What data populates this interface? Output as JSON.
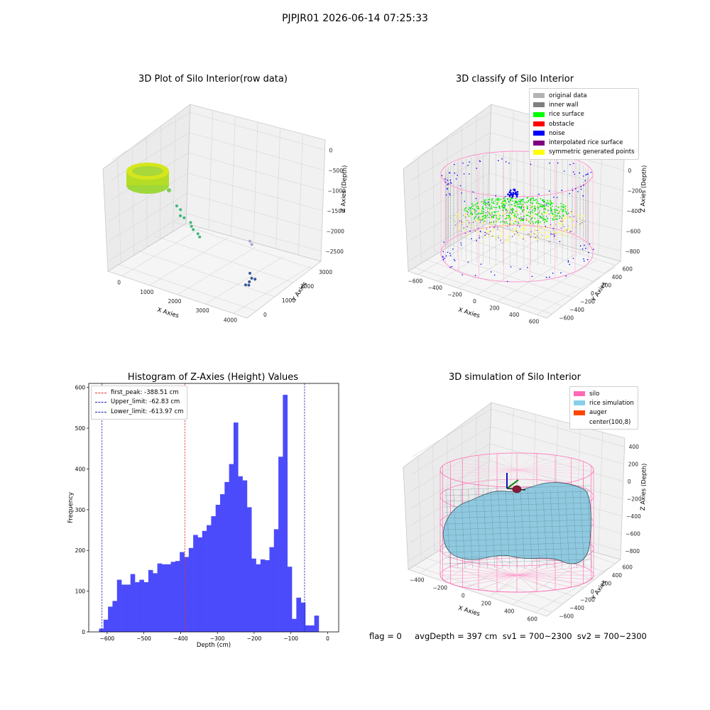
{
  "figure": {
    "suptitle": "PJPJR01 2026-06-14 07:25:33",
    "status_text": "flag = 0     avgDepth = 397 cm  sv1 = 700~2300  sv2 = 700~2300"
  },
  "chart_data": [
    {
      "type": "scatter",
      "projection": "3d",
      "title": "3D Plot of Silo Interior(row data)",
      "xlabel": "X Axies",
      "ylabel": "Y Axies",
      "zlabel": "Z Axies (Depth)",
      "x_ticks": [
        "0",
        "1000",
        "2000",
        "3000",
        "4000"
      ],
      "y_ticks": [
        "0",
        "1000",
        "2000",
        "3000"
      ],
      "z_ticks": [
        "0",
        "−500",
        "−1000",
        "−1500",
        "−2000",
        "−2500"
      ],
      "xlim": [
        -500,
        4500
      ],
      "ylim": [
        -500,
        3500
      ],
      "zlim": [
        -2900,
        100
      ],
      "colormap": "viridis",
      "grid": true,
      "clusters": [
        {
          "shape": "ring",
          "x": 0,
          "y": 0,
          "z": -500,
          "color": "#c8e020"
        },
        {
          "shape": "points",
          "x": [
            1200,
            1300,
            1400,
            1500,
            1700,
            1800,
            1900,
            2100,
            2200
          ],
          "y": [
            600,
            650,
            500,
            550,
            600,
            500,
            450,
            400,
            350
          ],
          "z": [
            -900,
            -1000,
            -1100,
            -1150,
            -1250,
            -1300,
            -1350,
            -1400,
            -1450
          ],
          "color": "#3fb87a"
        },
        {
          "shape": "points",
          "x": [
            3200,
            3300
          ],
          "y": [
            1500,
            1450
          ],
          "z": [
            -1700,
            -1750
          ],
          "color": "#b0a0d0"
        },
        {
          "shape": "points",
          "x": [
            3900,
            4000,
            4050,
            3950,
            3850,
            4000
          ],
          "y": [
            500,
            450,
            550,
            400,
            350,
            300
          ],
          "z": [
            -2100,
            -2200,
            -2250,
            -2300,
            -2400,
            -2350
          ],
          "color": "#3a5a9a"
        }
      ]
    },
    {
      "type": "scatter",
      "projection": "3d",
      "title": "3D classify of Silo Interior",
      "xlabel": "X Axies",
      "ylabel": "Y Axies",
      "zlabel": "Z Axies (Depth)",
      "x_ticks": [
        "−600",
        "−400",
        "−200",
        "0",
        "200",
        "400",
        "600"
      ],
      "y_ticks": [
        "−600",
        "−400",
        "−200",
        "0",
        "200",
        "400",
        "600"
      ],
      "z_ticks": [
        "200",
        "0",
        "−200",
        "−400",
        "−600",
        "−800"
      ],
      "xlim": [
        -700,
        700
      ],
      "ylim": [
        -700,
        700
      ],
      "zlim": [
        -900,
        300
      ],
      "grid": true,
      "legend": {
        "placement": "upper-right",
        "entries": [
          {
            "label": "original data",
            "color": "#b3b3b3"
          },
          {
            "label": "inner wall",
            "color": "#808080"
          },
          {
            "label": "rice surface",
            "color": "#00ff00"
          },
          {
            "label": "obstacle",
            "color": "#ff0000"
          },
          {
            "label": "noise",
            "color": "#0000ff"
          },
          {
            "label": "interpolated rice surface",
            "color": "#800080"
          },
          {
            "label": "symmetric generated points",
            "color": "#ffff00"
          }
        ]
      }
    },
    {
      "type": "bar",
      "title": "Histogram of Z-Axies (Height) Values",
      "xlabel": "Depth (cm)",
      "ylabel": "Frequency",
      "xlim": [
        -650,
        30
      ],
      "ylim": [
        0,
        610
      ],
      "x_ticks": [
        "−600",
        "−500",
        "−400",
        "−300",
        "−200",
        "−100",
        "0"
      ],
      "y_ticks": [
        "0",
        "100",
        "200",
        "300",
        "400",
        "500",
        "600"
      ],
      "bin_start": -622,
      "bin_width": 12.2,
      "bar_color": "#4b4bfc",
      "values": [
        8,
        30,
        62,
        76,
        128,
        116,
        116,
        142,
        122,
        128,
        122,
        152,
        144,
        168,
        166,
        166,
        172,
        174,
        196,
        184,
        206,
        238,
        232,
        248,
        262,
        284,
        312,
        338,
        368,
        412,
        514,
        382,
        372,
        306,
        180,
        166,
        178,
        176,
        208,
        252,
        430,
        582,
        160,
        32,
        84,
        72,
        16,
        16,
        40
      ],
      "reference_lines": [
        {
          "label": "first_peak: -388.51 cm",
          "x": -388.51,
          "color": "#e03030"
        },
        {
          "label": "Upper_limit: -62.83 cm",
          "x": -62.83,
          "color": "#2020b0"
        },
        {
          "label": "Lower_limit: -613.97 cm",
          "x": -613.97,
          "color": "#2020b0"
        }
      ],
      "legend": {
        "placement": "upper-left"
      }
    },
    {
      "type": "area",
      "projection": "3d",
      "title": "3D simulation of Silo Interior",
      "xlabel": "X Axies",
      "ylabel": "Y Axies",
      "zlabel": "Z Axies (Depth)",
      "x_ticks": [
        "−400",
        "−200",
        "0",
        "200",
        "400",
        "600"
      ],
      "y_ticks": [
        "−600",
        "−400",
        "−200",
        "0",
        "200",
        "400",
        "600"
      ],
      "z_ticks": [
        "400",
        "200",
        "0",
        "−200",
        "−400",
        "−600",
        "−800"
      ],
      "xlim": [
        -600,
        700
      ],
      "ylim": [
        -700,
        700
      ],
      "zlim": [
        -900,
        450
      ],
      "grid": true,
      "legend": {
        "placement": "upper-right",
        "entries": [
          {
            "label": "silo",
            "color": "#ff69b4"
          },
          {
            "label": "rice simulation",
            "color": "#87ceeb"
          },
          {
            "label": "auger",
            "color": "#ff4500"
          },
          {
            "label": "center(100,8)",
            "color": ""
          }
        ]
      }
    }
  ]
}
